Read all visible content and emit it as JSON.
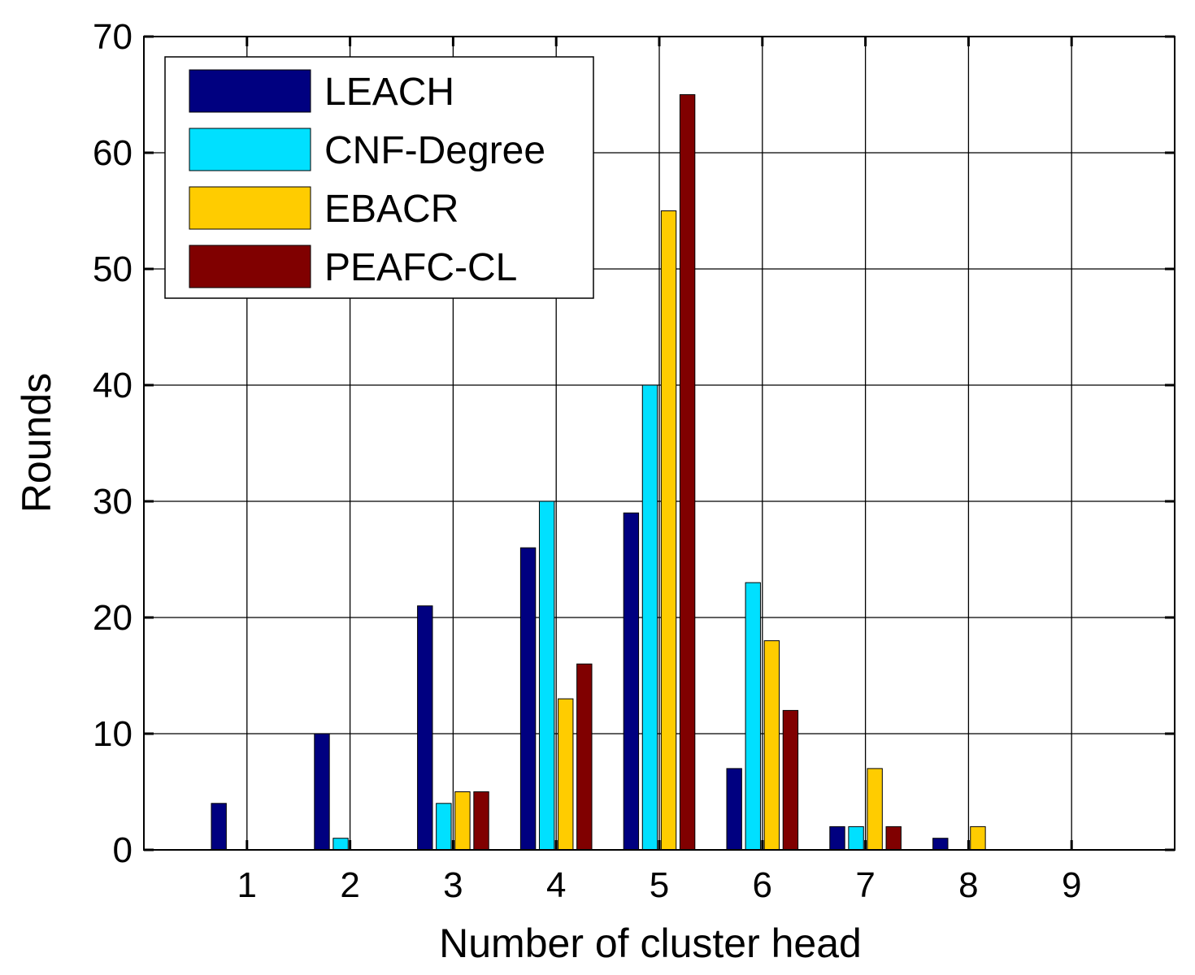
{
  "chart_data": {
    "type": "bar",
    "title": "",
    "xlabel": "Number of cluster head",
    "ylabel": "Rounds",
    "categories": [
      "1",
      "2",
      "3",
      "4",
      "5",
      "6",
      "7",
      "8",
      "9"
    ],
    "xlim": [
      0.0,
      10.0
    ],
    "ylim": [
      0,
      70
    ],
    "yticks": [
      0,
      10,
      20,
      30,
      40,
      50,
      60,
      70
    ],
    "grid": true,
    "legend": "top-left",
    "series": [
      {
        "name": "LEACH",
        "color": "#000080",
        "values": [
          4,
          10,
          21,
          26,
          29,
          7,
          2,
          1,
          0
        ]
      },
      {
        "name": "CNF-Degree",
        "color": "#00E0FF",
        "values": [
          0,
          1,
          4,
          30,
          40,
          23,
          2,
          0,
          0
        ]
      },
      {
        "name": "EBACR",
        "color": "#FFCC00",
        "values": [
          0,
          0,
          5,
          13,
          55,
          18,
          7,
          2,
          0
        ]
      },
      {
        "name": "PEAFC-CL",
        "color": "#800000",
        "values": [
          0,
          0,
          5,
          16,
          65,
          12,
          2,
          0,
          0
        ]
      }
    ]
  }
}
